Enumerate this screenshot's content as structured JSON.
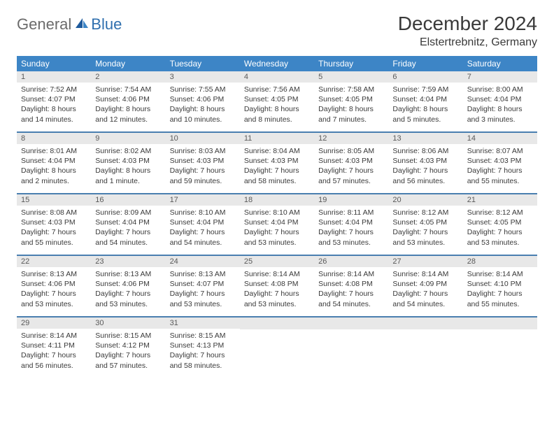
{
  "brand": {
    "part1": "General",
    "part2": "Blue"
  },
  "title": "December 2024",
  "location": "Elstertrebnitz, Germany",
  "colors": {
    "header_bg": "#3d85c6",
    "header_text": "#ffffff",
    "daynum_bg": "#e8e8e8",
    "divider": "#4a7fb0",
    "brand_blue": "#2f6fae",
    "brand_gray": "#6b6b6b"
  },
  "dow": [
    "Sunday",
    "Monday",
    "Tuesday",
    "Wednesday",
    "Thursday",
    "Friday",
    "Saturday"
  ],
  "weeks": [
    [
      {
        "n": "1",
        "sunrise": "7:52 AM",
        "sunset": "4:07 PM",
        "daylight": "8 hours and 14 minutes."
      },
      {
        "n": "2",
        "sunrise": "7:54 AM",
        "sunset": "4:06 PM",
        "daylight": "8 hours and 12 minutes."
      },
      {
        "n": "3",
        "sunrise": "7:55 AM",
        "sunset": "4:06 PM",
        "daylight": "8 hours and 10 minutes."
      },
      {
        "n": "4",
        "sunrise": "7:56 AM",
        "sunset": "4:05 PM",
        "daylight": "8 hours and 8 minutes."
      },
      {
        "n": "5",
        "sunrise": "7:58 AM",
        "sunset": "4:05 PM",
        "daylight": "8 hours and 7 minutes."
      },
      {
        "n": "6",
        "sunrise": "7:59 AM",
        "sunset": "4:04 PM",
        "daylight": "8 hours and 5 minutes."
      },
      {
        "n": "7",
        "sunrise": "8:00 AM",
        "sunset": "4:04 PM",
        "daylight": "8 hours and 3 minutes."
      }
    ],
    [
      {
        "n": "8",
        "sunrise": "8:01 AM",
        "sunset": "4:04 PM",
        "daylight": "8 hours and 2 minutes."
      },
      {
        "n": "9",
        "sunrise": "8:02 AM",
        "sunset": "4:03 PM",
        "daylight": "8 hours and 1 minute."
      },
      {
        "n": "10",
        "sunrise": "8:03 AM",
        "sunset": "4:03 PM",
        "daylight": "7 hours and 59 minutes."
      },
      {
        "n": "11",
        "sunrise": "8:04 AM",
        "sunset": "4:03 PM",
        "daylight": "7 hours and 58 minutes."
      },
      {
        "n": "12",
        "sunrise": "8:05 AM",
        "sunset": "4:03 PM",
        "daylight": "7 hours and 57 minutes."
      },
      {
        "n": "13",
        "sunrise": "8:06 AM",
        "sunset": "4:03 PM",
        "daylight": "7 hours and 56 minutes."
      },
      {
        "n": "14",
        "sunrise": "8:07 AM",
        "sunset": "4:03 PM",
        "daylight": "7 hours and 55 minutes."
      }
    ],
    [
      {
        "n": "15",
        "sunrise": "8:08 AM",
        "sunset": "4:03 PM",
        "daylight": "7 hours and 55 minutes."
      },
      {
        "n": "16",
        "sunrise": "8:09 AM",
        "sunset": "4:04 PM",
        "daylight": "7 hours and 54 minutes."
      },
      {
        "n": "17",
        "sunrise": "8:10 AM",
        "sunset": "4:04 PM",
        "daylight": "7 hours and 54 minutes."
      },
      {
        "n": "18",
        "sunrise": "8:10 AM",
        "sunset": "4:04 PM",
        "daylight": "7 hours and 53 minutes."
      },
      {
        "n": "19",
        "sunrise": "8:11 AM",
        "sunset": "4:04 PM",
        "daylight": "7 hours and 53 minutes."
      },
      {
        "n": "20",
        "sunrise": "8:12 AM",
        "sunset": "4:05 PM",
        "daylight": "7 hours and 53 minutes."
      },
      {
        "n": "21",
        "sunrise": "8:12 AM",
        "sunset": "4:05 PM",
        "daylight": "7 hours and 53 minutes."
      }
    ],
    [
      {
        "n": "22",
        "sunrise": "8:13 AM",
        "sunset": "4:06 PM",
        "daylight": "7 hours and 53 minutes."
      },
      {
        "n": "23",
        "sunrise": "8:13 AM",
        "sunset": "4:06 PM",
        "daylight": "7 hours and 53 minutes."
      },
      {
        "n": "24",
        "sunrise": "8:13 AM",
        "sunset": "4:07 PM",
        "daylight": "7 hours and 53 minutes."
      },
      {
        "n": "25",
        "sunrise": "8:14 AM",
        "sunset": "4:08 PM",
        "daylight": "7 hours and 53 minutes."
      },
      {
        "n": "26",
        "sunrise": "8:14 AM",
        "sunset": "4:08 PM",
        "daylight": "7 hours and 54 minutes."
      },
      {
        "n": "27",
        "sunrise": "8:14 AM",
        "sunset": "4:09 PM",
        "daylight": "7 hours and 54 minutes."
      },
      {
        "n": "28",
        "sunrise": "8:14 AM",
        "sunset": "4:10 PM",
        "daylight": "7 hours and 55 minutes."
      }
    ],
    [
      {
        "n": "29",
        "sunrise": "8:14 AM",
        "sunset": "4:11 PM",
        "daylight": "7 hours and 56 minutes."
      },
      {
        "n": "30",
        "sunrise": "8:15 AM",
        "sunset": "4:12 PM",
        "daylight": "7 hours and 57 minutes."
      },
      {
        "n": "31",
        "sunrise": "8:15 AM",
        "sunset": "4:13 PM",
        "daylight": "7 hours and 58 minutes."
      },
      null,
      null,
      null,
      null
    ]
  ],
  "labels": {
    "sunrise": "Sunrise: ",
    "sunset": "Sunset: ",
    "daylight": "Daylight: "
  }
}
